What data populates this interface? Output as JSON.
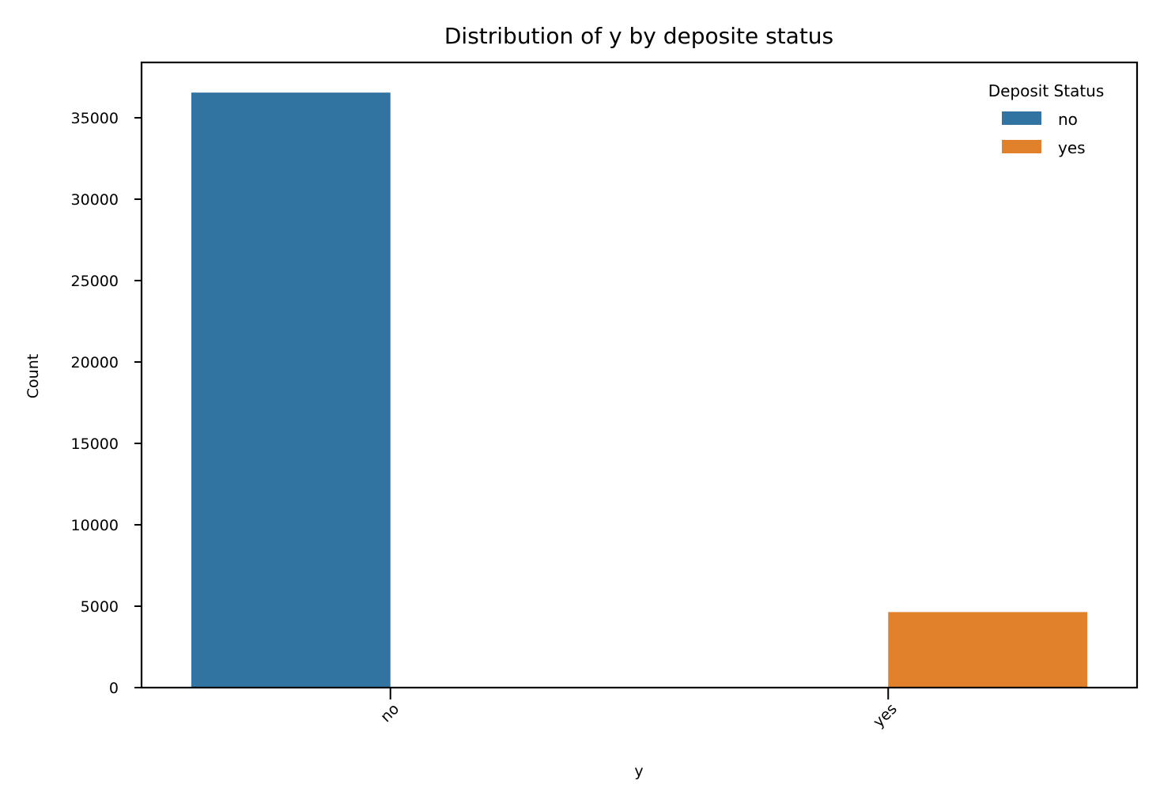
{
  "chart_data": {
    "type": "bar",
    "title": "Distribution of y by deposite status",
    "xlabel": "y",
    "ylabel": "Count",
    "categories": [
      "no",
      "yes"
    ],
    "series": [
      {
        "name": "no",
        "color": "#3274a1",
        "values": [
          36548,
          0
        ]
      },
      {
        "name": "yes",
        "color": "#e1812c",
        "values": [
          0,
          4640
        ]
      }
    ],
    "ylim": [
      0,
      38400
    ],
    "yticks": [
      0,
      5000,
      10000,
      15000,
      20000,
      25000,
      30000,
      35000
    ],
    "ytick_labels": [
      "0",
      "5000",
      "10000",
      "15000",
      "20000",
      "25000",
      "30000",
      "35000"
    ],
    "xtick_rotation": -45,
    "legend": {
      "title": "Deposit Status",
      "position": "top-right",
      "entries": [
        "no",
        "yes"
      ]
    },
    "grid": false
  }
}
